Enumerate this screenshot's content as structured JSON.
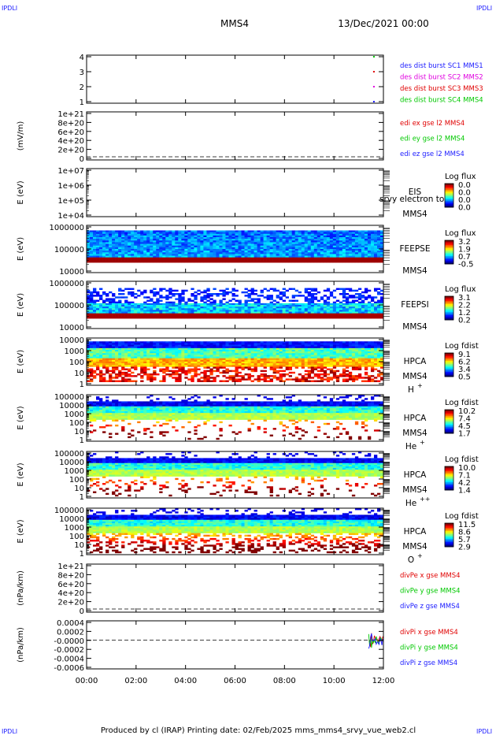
{
  "header": {
    "corner_label": "IPDLI",
    "title": "MMS4",
    "date": "13/Dec/2021 00:00"
  },
  "footer": {
    "text": "Produced by cl (IRAP)   Printing date: 02/Feb/2025   mms_mms4_srvy_vue_web2.cl"
  },
  "colors": {
    "blue": "#1a1aff",
    "magenta": "#e000e0",
    "red": "#e00000",
    "green": "#00c800"
  },
  "chart_data": [
    {
      "type": "scatter",
      "id": "burst",
      "ylabel": "",
      "yticks": [
        "1",
        "2",
        "3",
        "4"
      ],
      "legend": [
        {
          "text": "des dist burst SC1 MMS1",
          "color": "#1a1aff"
        },
        {
          "text": "des dist burst SC2 MMS2",
          "color": "#e000e0"
        },
        {
          "text": "des dist burst SC3 MMS3",
          "color": "#e00000"
        },
        {
          "text": "des dist burst SC4 MMS4",
          "color": "#00c800"
        }
      ],
      "series": [
        {
          "x": "11:35",
          "y": [
            1,
            2,
            3,
            4
          ]
        }
      ]
    },
    {
      "type": "line",
      "id": "edi",
      "ylabel": "(mV/m)",
      "yticks": [
        "0",
        "2e+20",
        "4e+20",
        "6e+20",
        "8e+20",
        "1e+21"
      ],
      "legend": [
        {
          "text": "edi ex gse l2 MMS4",
          "color": "#e00000"
        },
        {
          "text": "edi ey gse l2 MMS4",
          "color": "#00c800"
        },
        {
          "text": "edi ez gse l2 MMS4",
          "color": "#1a1aff"
        }
      ]
    },
    {
      "type": "heatmap",
      "id": "eis",
      "ylabel": "E (eV)",
      "yscale": "log",
      "yticks": [
        "1e+04",
        "1e+05",
        "1e+06",
        "1e+07"
      ],
      "instrument": [
        "EIS",
        "MMS4"
      ],
      "extra_label": "srvy electron to",
      "colorbar_title": "Log flux",
      "colorbar_ticks": [
        "0.0",
        "0.0",
        "0.0",
        "0.0"
      ]
    },
    {
      "type": "heatmap",
      "id": "feepse",
      "ylabel": "E (eV)",
      "yscale": "log",
      "yticks": [
        "10000",
        "100000",
        "1000000"
      ],
      "instrument": [
        "FEEPSE",
        "MMS4"
      ],
      "colorbar_title": "Log flux",
      "colorbar_ticks": [
        "3.2",
        "1.9",
        "0.7",
        "-0.5"
      ]
    },
    {
      "type": "heatmap",
      "id": "feepsi",
      "ylabel": "E (eV)",
      "yscale": "log",
      "yticks": [
        "10000",
        "100000",
        "1000000"
      ],
      "instrument": [
        "FEEPSI",
        "MMS4"
      ],
      "colorbar_title": "Log flux",
      "colorbar_ticks": [
        "3.1",
        "2.2",
        "1.2",
        "0.2"
      ]
    },
    {
      "type": "heatmap",
      "id": "hpca-h",
      "ylabel": "E (eV)",
      "yscale": "log",
      "yticks": [
        "1",
        "10",
        "100",
        "1000",
        "10000"
      ],
      "instrument": [
        "HPCA",
        "MMS4"
      ],
      "species": "H",
      "charge": "+",
      "colorbar_title": "Log fdist",
      "colorbar_ticks": [
        "9.1",
        "6.2",
        "3.4",
        "0.5"
      ]
    },
    {
      "type": "heatmap",
      "id": "hpca-he",
      "ylabel": "E (eV)",
      "yscale": "log",
      "yticks": [
        "1",
        "10",
        "100",
        "1000",
        "10000",
        "100000"
      ],
      "instrument": [
        "HPCA",
        "MMS4"
      ],
      "species": "He",
      "charge": "+",
      "colorbar_title": "Log fdist",
      "colorbar_ticks": [
        "10.2",
        "7.4",
        "4.5",
        "1.7"
      ]
    },
    {
      "type": "heatmap",
      "id": "hpca-hepp",
      "ylabel": "E (eV)",
      "yscale": "log",
      "yticks": [
        "1",
        "10",
        "100",
        "1000",
        "10000",
        "100000"
      ],
      "instrument": [
        "HPCA",
        "MMS4"
      ],
      "species": "He",
      "charge": "++",
      "colorbar_title": "Log fdist",
      "colorbar_ticks": [
        "10.0",
        "7.1",
        "4.2",
        "1.4"
      ]
    },
    {
      "type": "heatmap",
      "id": "hpca-o",
      "ylabel": "E (eV)",
      "yscale": "log",
      "yticks": [
        "1",
        "10",
        "100",
        "1000",
        "10000",
        "100000"
      ],
      "instrument": [
        "HPCA",
        "MMS4"
      ],
      "species": "O",
      "charge": "+",
      "colorbar_title": "Log fdist",
      "colorbar_ticks": [
        "11.5",
        "8.6",
        "5.7",
        "2.9"
      ]
    },
    {
      "type": "line",
      "id": "divpe",
      "ylabel": "(nPa/km)",
      "yticks": [
        "0",
        "2e+20",
        "4e+20",
        "6e+20",
        "8e+20",
        "1e+21"
      ],
      "legend": [
        {
          "text": "divPe x gse MMS4",
          "color": "#e00000"
        },
        {
          "text": "divPe y gse MMS4",
          "color": "#00c800"
        },
        {
          "text": "divPe z gse MMS4",
          "color": "#1a1aff"
        }
      ]
    },
    {
      "type": "line",
      "id": "divpi",
      "ylabel": "(nPa/km)",
      "yticks": [
        "-0.0006",
        "-0.0004",
        "-0.0002",
        "-0.0000",
        "0.0002",
        "0.0004"
      ],
      "legend": [
        {
          "text": "divPi x gse MMS4",
          "color": "#e00000"
        },
        {
          "text": "divPi y gse MMS4",
          "color": "#00c800"
        },
        {
          "text": "divPi z gse MMS4",
          "color": "#1a1aff"
        }
      ],
      "data_range": [
        "11:30",
        "12:00"
      ]
    }
  ],
  "x_axis": {
    "ticks": [
      "00:00",
      "02:00",
      "04:00",
      "06:00",
      "08:00",
      "10:00",
      "12:00"
    ],
    "range": [
      "00:00",
      "12:00"
    ]
  }
}
